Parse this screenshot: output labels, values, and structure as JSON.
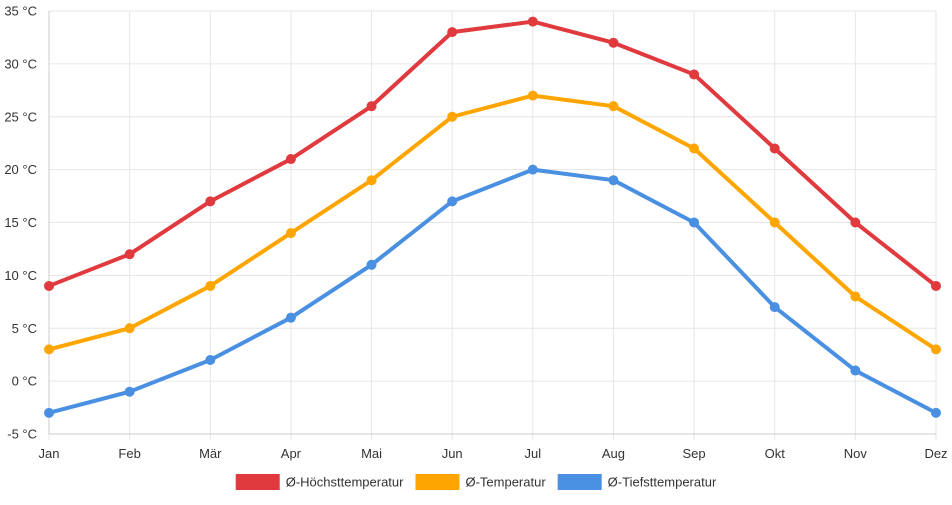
{
  "chart_data": {
    "type": "line",
    "title": "",
    "xlabel": "",
    "ylabel": "",
    "categories": [
      "Jan",
      "Feb",
      "Mär",
      "Apr",
      "Mai",
      "Jun",
      "Jul",
      "Aug",
      "Sep",
      "Okt",
      "Nov",
      "Dez"
    ],
    "ylim": [
      -5,
      35
    ],
    "y_ticks": [
      -5,
      0,
      5,
      10,
      15,
      20,
      25,
      30,
      35
    ],
    "y_tick_labels": [
      "-5 °C",
      "0 °C",
      "5 °C",
      "10 °C",
      "15 °C",
      "20 °C",
      "25 °C",
      "30 °C",
      "35 °C"
    ],
    "grid": true,
    "legend_position": "bottom",
    "series": [
      {
        "name": "Ø-Höchsttemperatur",
        "color": "#e0393e",
        "values": [
          9,
          12,
          17,
          21,
          26,
          33,
          34,
          32,
          29,
          22,
          15,
          9
        ]
      },
      {
        "name": "Ø-Temperatur",
        "color": "#ffa500",
        "values": [
          3,
          5,
          9,
          14,
          19,
          25,
          27,
          26,
          22,
          15,
          8,
          3
        ]
      },
      {
        "name": "Ø-Tiefsttemperatur",
        "color": "#4a90e2",
        "values": [
          -3,
          -1,
          2,
          6,
          11,
          17,
          20,
          19,
          15,
          7,
          1,
          -3
        ]
      }
    ]
  }
}
